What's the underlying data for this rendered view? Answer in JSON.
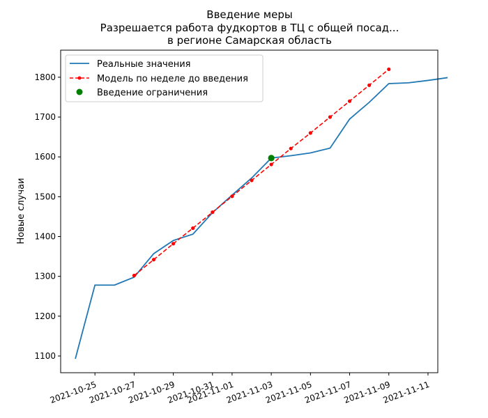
{
  "chart_data": {
    "type": "line",
    "title_lines": [
      "Введение меры",
      "Разрешается работа фудкортов в ТЦ с общей посад...",
      "в регионе Самарская область"
    ],
    "xlabel": "",
    "ylabel": "Новые случаи",
    "xlim": [
      "2021-10-23T06:00",
      "2021-11-11T12:00"
    ],
    "ylim": [
      1058,
      1868
    ],
    "x_ticks": [
      "2021-10-25",
      "2021-10-27",
      "2021-10-29",
      "2021-10-31",
      "2021-11-01",
      "2021-11-03",
      "2021-11-05",
      "2021-11-07",
      "2021-11-09",
      "2021-11-11"
    ],
    "y_ticks": [
      1100,
      1200,
      1300,
      1400,
      1500,
      1600,
      1700,
      1800
    ],
    "grid": false,
    "legend_position": "upper-left",
    "series": [
      {
        "name": "Реальные значения",
        "kind": "line",
        "color": "#1f77b4",
        "x": [
          "2021-10-24",
          "2021-10-25",
          "2021-10-26",
          "2021-10-27",
          "2021-10-28",
          "2021-10-29",
          "2021-10-30",
          "2021-10-31",
          "2021-11-01",
          "2021-11-02",
          "2021-11-03",
          "2021-11-04",
          "2021-11-05",
          "2021-11-06",
          "2021-11-07",
          "2021-11-08",
          "2021-11-09",
          "2021-11-10",
          "2021-11-11",
          "2021-11-12"
        ],
        "values": [
          1093,
          1278,
          1278,
          1298,
          1357,
          1390,
          1406,
          1460,
          1504,
          1547,
          1597,
          1603,
          1610,
          1622,
          1695,
          1737,
          1784,
          1786,
          1792,
          1799
        ]
      },
      {
        "name": "Модель по неделе до введения",
        "kind": "dashed-line-markers",
        "color": "#ff0000",
        "x": [
          "2021-10-27",
          "2021-10-28",
          "2021-10-29",
          "2021-10-30",
          "2021-10-31",
          "2021-11-01",
          "2021-11-02",
          "2021-11-03",
          "2021-11-04",
          "2021-11-05",
          "2021-11-06",
          "2021-11-07",
          "2021-11-08",
          "2021-11-09"
        ],
        "values": [
          1302,
          1342,
          1382,
          1421,
          1461,
          1501,
          1541,
          1581,
          1621,
          1660,
          1700,
          1740,
          1780,
          1820
        ]
      },
      {
        "name": "Введение ограничения",
        "kind": "scatter",
        "color": "#008000",
        "x": [
          "2021-11-03"
        ],
        "values": [
          1597
        ]
      }
    ]
  }
}
